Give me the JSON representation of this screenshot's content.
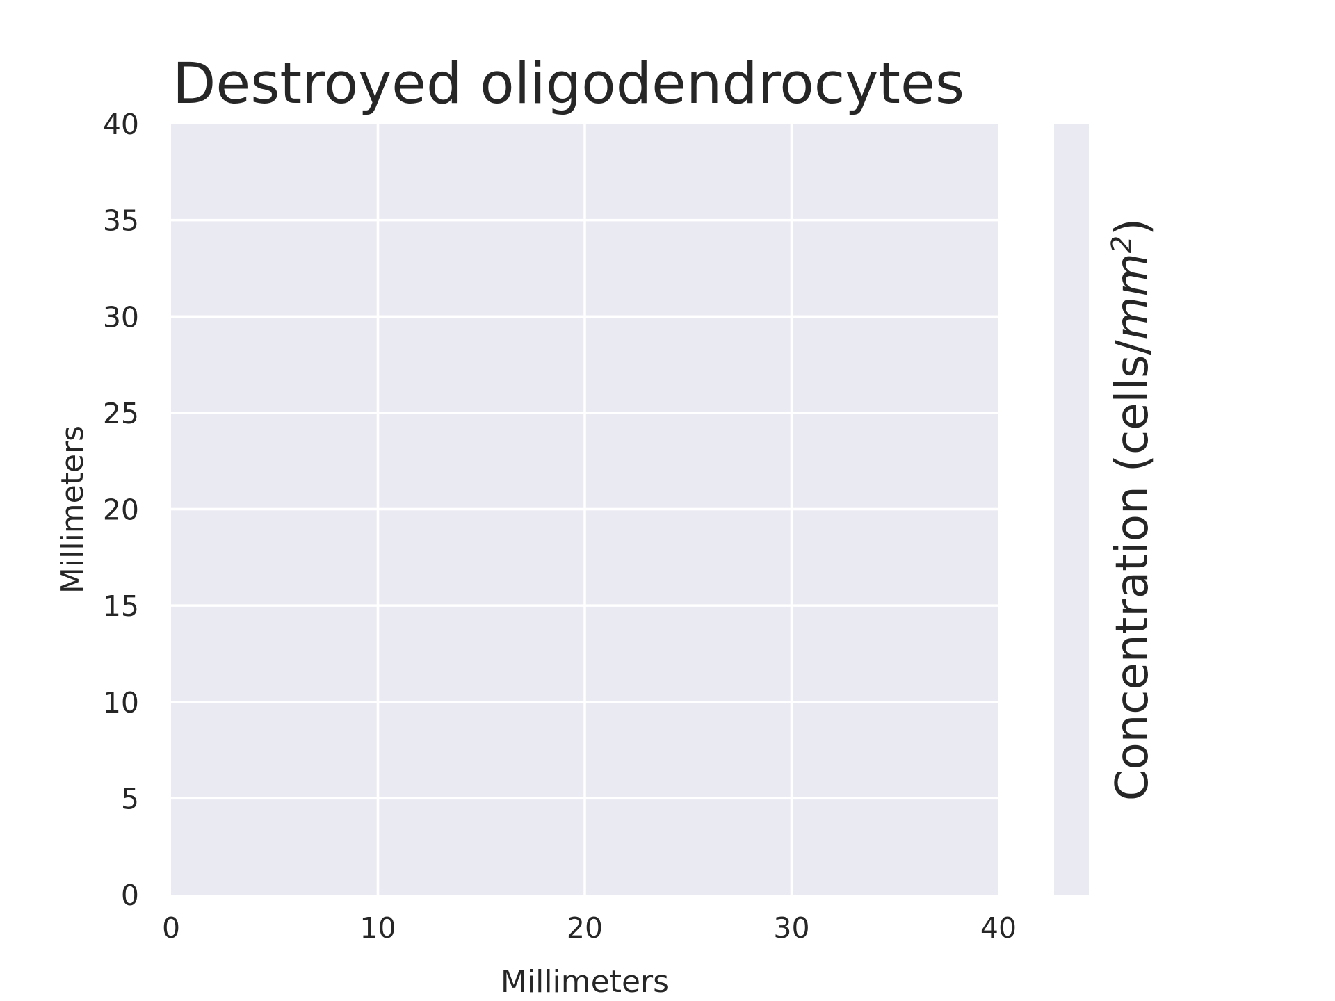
{
  "chart_data": {
    "type": "heatmap",
    "title": "Destroyed oligodendrocytes",
    "xlabel": "Millimeters",
    "ylabel": "Millimeters",
    "xlim": [
      0,
      40
    ],
    "ylim": [
      0,
      40
    ],
    "x_ticks": [
      0,
      10,
      20,
      30,
      40
    ],
    "y_ticks": [
      0,
      5,
      10,
      15,
      20,
      25,
      30,
      35,
      40
    ],
    "grid": true,
    "values": [],
    "colorbar": {
      "label_prefix": "Concentration (cells/",
      "label_unit": "mm",
      "label_power": "2",
      "label_suffix": ")"
    }
  },
  "colors": {
    "plot_background": "#eaeaf2",
    "grid": "#ffffff",
    "text": "#262626"
  }
}
